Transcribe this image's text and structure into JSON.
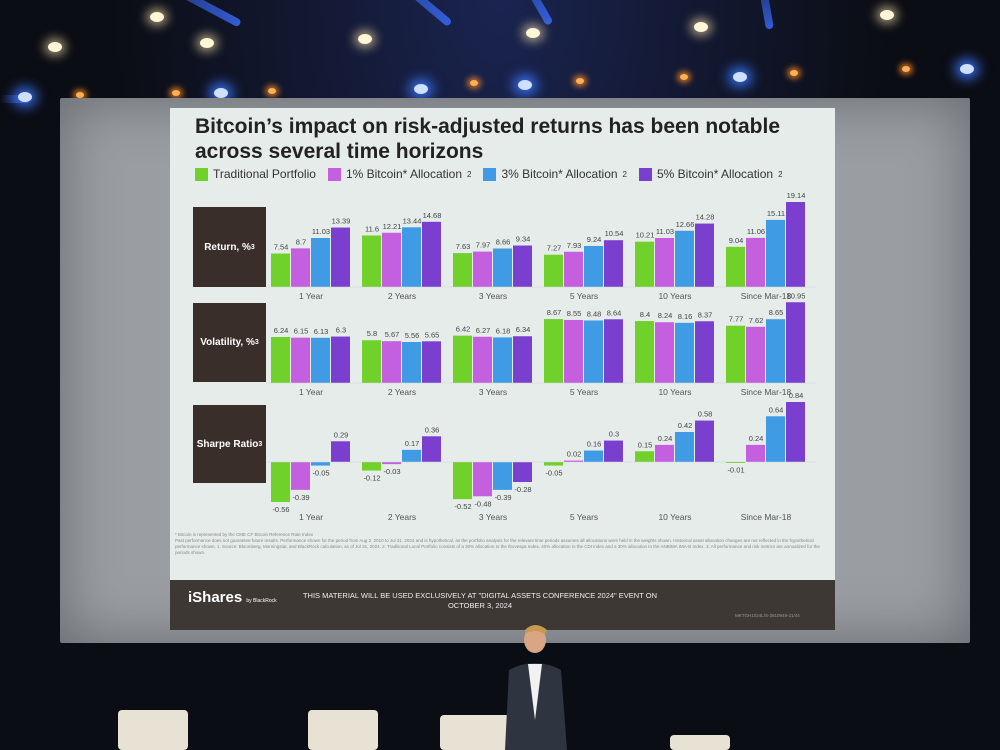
{
  "slide": {
    "title": "Bitcoin’s impact on risk-adjusted returns has been notable across several time horizons",
    "footnote_1": "* Bitcoin is represented by the CME CF Bitcoin Reference Rate Index",
    "footnote_2": "Past performance does not guarantee future results. Performance shown for the period from Aug 2, 2010 to Jul 31, 2024 and is hypothetical, as the portfolio analysis for the relevant time periods assumes all allocations were held in the weights shown. Historical asset allocation changes are not reflected in the hypothetical performance shown. 1. Source: Bloomberg, Morningstar, and BlackRock calculation, as of Jul 31, 2024. 2. Traditional Local Portfolio consists of a 30% allocation to the Ibovespa Index, 40% allocation to the CDI index and a 30% allocation to the ANBIMA IMA-B Index. 3. All performance and risk metrics are annualized for the periods shown.",
    "brand": "iShares",
    "brand_sub": "by BlackRock",
    "disclaimer": "THIS MATERIAL WILL BE USED EXCLUSIVELY AT \"DIGITAL ASSETS CONFERENCE 2024\" EVENT ON OCTOBER 3, 2024",
    "code": "MKTGH1024L/S-3910949-21/44"
  },
  "chart_data": {
    "type": "bar",
    "title": "Bitcoin’s impact on risk-adjusted returns has been notable across several time horizons",
    "legend_position": "top-left",
    "categories": [
      "1 Year",
      "2 Years",
      "3 Years",
      "5 Years",
      "10 Years",
      "Since Mar-18"
    ],
    "series_names": [
      "Traditional Portfolio",
      "1% Bitcoin* Allocation",
      "3% Bitcoin* Allocation",
      "5% Bitcoin* Allocation"
    ],
    "series_colors": [
      "#6fd12a",
      "#c45fe0",
      "#3f9be4",
      "#7b3fd0"
    ],
    "legend_sup": "2",
    "panels": [
      {
        "label": "Return, %",
        "sup": "3",
        "values": [
          [
            7.54,
            8.7,
            11.03,
            13.39
          ],
          [
            11.6,
            12.21,
            13.44,
            14.68
          ],
          [
            7.63,
            7.97,
            8.66,
            9.34
          ],
          [
            7.27,
            7.93,
            9.24,
            10.54
          ],
          [
            10.21,
            11.03,
            12.66,
            14.28
          ],
          [
            9.04,
            11.06,
            15.11,
            19.14
          ]
        ]
      },
      {
        "label": "Volatility, %",
        "sup": "3",
        "values": [
          [
            6.24,
            6.15,
            6.13,
            6.3
          ],
          [
            5.8,
            5.67,
            5.56,
            5.65
          ],
          [
            6.42,
            6.27,
            6.18,
            6.34
          ],
          [
            8.67,
            8.55,
            8.48,
            8.64
          ],
          [
            8.4,
            8.24,
            8.16,
            8.37
          ],
          [
            7.77,
            7.62,
            8.65,
            10.95
          ]
        ]
      },
      {
        "label": "Sharpe Ratio",
        "sup": "3",
        "values": [
          [
            -0.56,
            -0.39,
            -0.05,
            0.29
          ],
          [
            -0.12,
            -0.03,
            0.17,
            0.36
          ],
          [
            -0.52,
            -0.48,
            -0.39,
            -0.28
          ],
          [
            -0.05,
            0.02,
            0.16,
            0.3
          ],
          [
            0.15,
            0.24,
            0.42,
            0.58
          ],
          [
            -0.01,
            0.24,
            0.64,
            0.84
          ]
        ]
      }
    ]
  }
}
